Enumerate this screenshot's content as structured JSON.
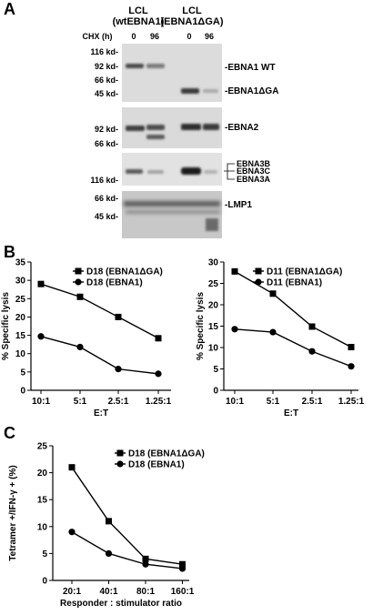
{
  "panels": {
    "A": "A",
    "B": "B",
    "C": "C"
  },
  "blot": {
    "lane_groups": [
      {
        "line1": "LCL",
        "line2": "(wtEBNA1)"
      },
      {
        "line1": "LCL",
        "line2": "(EBNA1ΔGA)"
      }
    ],
    "chx_label": "CHX (h)",
    "chx_values": [
      "0",
      "96",
      "0",
      "96"
    ],
    "sections": [
      {
        "markers": [
          "116 kd-",
          "92 kd-",
          "66 kd-",
          "45 kd-"
        ],
        "labels": [
          "-EBNA1 WT",
          "-EBNA1ΔGA"
        ]
      },
      {
        "markers": [
          "92 kd-",
          "66 kd-"
        ],
        "labels": [
          "-EBNA2"
        ]
      },
      {
        "markers": [
          "116 kd-"
        ],
        "labels": [
          "EBNA3B",
          "EBNA3C",
          "EBNA3A"
        ]
      },
      {
        "markers": [
          "66 kd-",
          "45 kd-"
        ],
        "labels": [
          "-LMP1"
        ]
      }
    ]
  },
  "chart_data": [
    {
      "type": "line",
      "panel": "B",
      "categories": [
        "10:1",
        "5:1",
        "2.5:1",
        "1.25:1"
      ],
      "xlabel": "E:T",
      "ylabel": "% Specific lysis",
      "ylim": [
        0,
        35
      ],
      "yticks": [
        "0",
        "5",
        "10",
        "15",
        "20",
        "25",
        "30",
        "35"
      ],
      "grid": false,
      "legend_position": "top-right",
      "series": [
        {
          "name": "D18 (EBNA1ΔGA)",
          "marker": "square",
          "values": [
            29,
            25.5,
            20,
            14.2
          ]
        },
        {
          "name": "D18 (EBNA1)",
          "marker": "circle",
          "values": [
            14.7,
            11.8,
            5.8,
            4.5
          ]
        }
      ]
    },
    {
      "type": "line",
      "panel": "B",
      "categories": [
        "10:1",
        "5:1",
        "2.5:1",
        "1.25:1"
      ],
      "xlabel": "E:T",
      "ylabel": "% Specific lysis",
      "ylim": [
        0,
        30
      ],
      "yticks": [
        "0",
        "5",
        "10",
        "15",
        "20",
        "25",
        "30"
      ],
      "grid": false,
      "legend_position": "top-right",
      "series": [
        {
          "name": "D11 (EBNA1ΔGA)",
          "marker": "square",
          "values": [
            27.8,
            22.6,
            14.9,
            10.1
          ]
        },
        {
          "name": "D11 (EBNA1)",
          "marker": "circle",
          "values": [
            14.3,
            13.6,
            9.1,
            5.6
          ]
        }
      ]
    },
    {
      "type": "line",
      "panel": "C",
      "categories": [
        "20:1",
        "40:1",
        "80:1",
        "160:1"
      ],
      "xlabel": "Responder : stimulator ratio",
      "ylabel": "Tetramer +/IFN-γ + (%)",
      "ylim": [
        0,
        25
      ],
      "yticks": [
        "0",
        "5",
        "10",
        "15",
        "20",
        "25"
      ],
      "grid": false,
      "legend_position": "top-right",
      "series": [
        {
          "name": "D18 (EBNA1ΔGA)",
          "marker": "square",
          "values": [
            21,
            11,
            4,
            3
          ]
        },
        {
          "name": "D18 (EBNA1)",
          "marker": "circle",
          "values": [
            9,
            5,
            3,
            2.2
          ]
        }
      ]
    }
  ]
}
